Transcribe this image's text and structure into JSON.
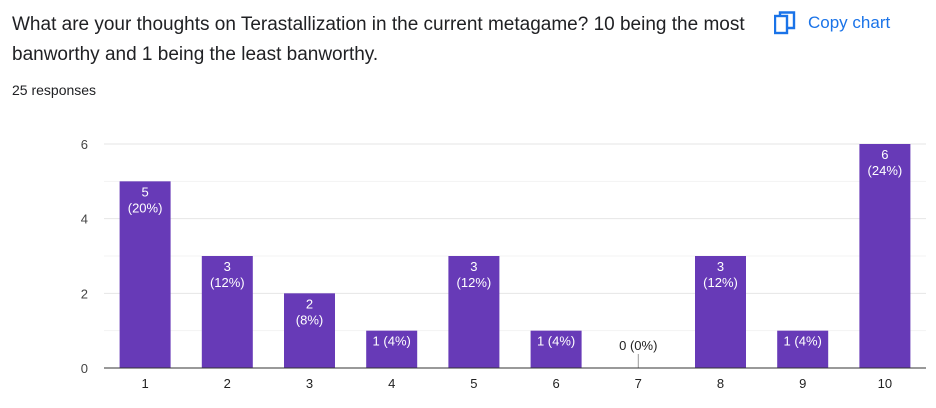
{
  "question": {
    "title": "What are your thoughts on Terastallization in the current metagame? 10 being the most banworthy and 1 being the least banworthy.",
    "responses": "25 responses"
  },
  "toolbar": {
    "copy_label": "Copy chart",
    "copy_icon": "copy-icon"
  },
  "colors": {
    "bar": "#673ab7",
    "accent": "#1a73e8"
  },
  "chart_data": {
    "type": "bar",
    "categories": [
      "1",
      "2",
      "3",
      "4",
      "5",
      "6",
      "7",
      "8",
      "9",
      "10"
    ],
    "values": [
      5,
      3,
      2,
      1,
      3,
      1,
      0,
      3,
      1,
      6
    ],
    "data_labels": [
      "5 (20%)",
      "3 (12%)",
      "2 (8%)",
      "1 (4%)",
      "3 (12%)",
      "1 (4%)",
      "0 (0%)",
      "3 (12%)",
      "1 (4%)",
      "6 (24%)"
    ],
    "yticks": [
      0,
      2,
      4,
      6
    ],
    "ylim": [
      0,
      6
    ],
    "grid": true,
    "title": "",
    "xlabel": "",
    "ylabel": ""
  }
}
